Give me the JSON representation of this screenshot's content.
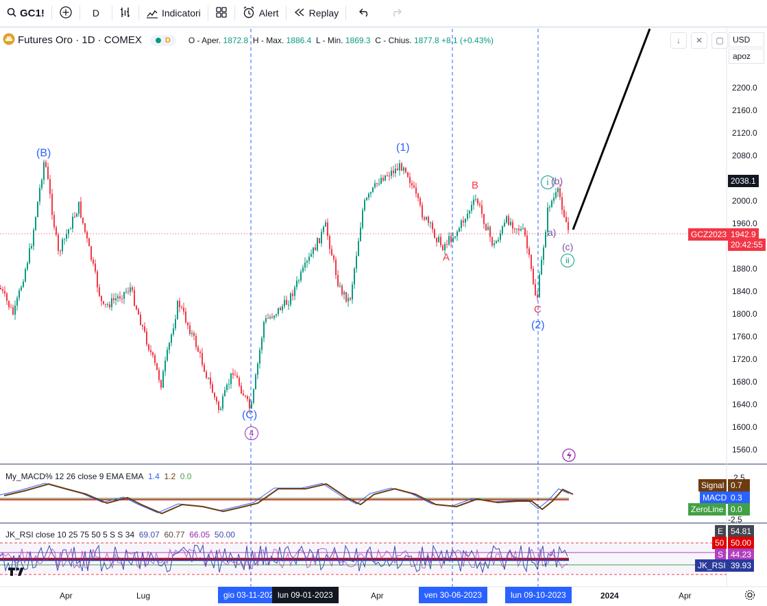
{
  "toolbar": {
    "symbol": "GC1!",
    "interval": "D",
    "indicators_label": "Indicatori",
    "alert_label": "Alert",
    "replay_label": "Replay"
  },
  "legend": {
    "title": "Futures Oro · 1D · COMEX",
    "d_badge": "D",
    "o_label": "O - Aper.",
    "o_value": "1872.8",
    "h_label": "H - Max.",
    "h_value": "1886.4",
    "l_label": "L - Min.",
    "l_value": "1869.3",
    "c_label": "C - Chius.",
    "c_value": "1877.8",
    "change": "+8.1 (+0.43%)"
  },
  "right_panel": {
    "currency": "USD",
    "unit": "apoz"
  },
  "price_axis": [
    "2200.0",
    "2160.0",
    "2120.0",
    "2080.0",
    "2040.0",
    "2000.0",
    "1960.0",
    "1880.0",
    "1840.0",
    "1800.0",
    "1760.0",
    "1720.0",
    "1680.0",
    "1640.0",
    "1600.0",
    "1560.0"
  ],
  "price_badges": {
    "high": "2038.1",
    "symbol_tag": "GCZ2023",
    "last": "1942.9",
    "countdown": "20:42:55"
  },
  "wave_labels": {
    "B_upper": "(B)",
    "one": "(1)",
    "C_upper": "(C)",
    "four": "4",
    "B": "B",
    "A": "A",
    "C": "C",
    "two": "(2)",
    "i": "i",
    "b": "(b)",
    "a": "a)",
    "c": "(c)",
    "ii": "ii"
  },
  "macd": {
    "title": "My_MACD% 12 26 close 9 EMA EMA",
    "v1": "1.4",
    "v2": "1.2",
    "v3": "0.0",
    "axis_top": "2.5",
    "axis_bottom": "-2.5",
    "signal_label": "Signal",
    "signal_value": "0.7",
    "macd_label": "MACD",
    "macd_value": "0.3",
    "zero_label": "ZeroLine",
    "zero_value": "0.0",
    "colors": {
      "signal": "#6d3b10",
      "macd": "#2962ff",
      "zero": "#43a047"
    }
  },
  "rsi": {
    "title": "JK_RSI close 10 25 75 50 5 S S 34",
    "v1": "69.07",
    "v2": "60.77",
    "v3": "66.05",
    "v4": "50.00",
    "e_label": "E",
    "e_value": "54.81",
    "l50_label": "50",
    "l50_value": "50.00",
    "s_label": "S",
    "s_value": "44.23",
    "rsi_label": "JK_RSI",
    "rsi_value": "39.93"
  },
  "time_axis": {
    "labels": [
      "Apr",
      "Lug",
      "Apr",
      "2024",
      "Apr"
    ],
    "highlight1": "gio 03-11-202",
    "highlight2": "lun 09-01-2023",
    "highlight3": "ven 30-06-2023",
    "highlight4": "lun 09-10-2023"
  }
}
